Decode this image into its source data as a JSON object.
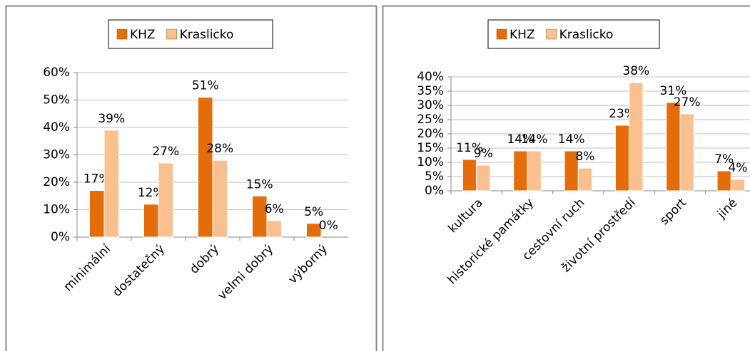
{
  "chart_data": [
    {
      "type": "bar",
      "categories": [
        "minimální",
        "dostatečný",
        "dobrý",
        "velmi dobrý",
        "výborný"
      ],
      "series": [
        {
          "name": "KHZ",
          "color": "#e46c0a",
          "values": [
            17,
            12,
            51,
            15,
            5
          ],
          "value_labels": [
            "17%",
            "12%",
            "51%",
            "15%",
            "5%"
          ]
        },
        {
          "name": "Kraslicko",
          "color": "#fac090",
          "values": [
            39,
            27,
            28,
            6,
            0
          ],
          "value_labels": [
            "39%",
            "27%",
            "28%",
            "6%",
            "0%"
          ]
        }
      ],
      "ylim": [
        0,
        60
      ],
      "yticks": [
        {
          "value": 0,
          "label": "0%"
        },
        {
          "value": 10,
          "label": "10%"
        },
        {
          "value": 20,
          "label": "20%"
        },
        {
          "value": 30,
          "label": "30%"
        },
        {
          "value": 40,
          "label": "40%"
        },
        {
          "value": 50,
          "label": "50%"
        },
        {
          "value": 60,
          "label": "60%"
        }
      ],
      "grid": true,
      "legend": "top"
    },
    {
      "type": "bar",
      "categories": [
        "kultura",
        "historické památky",
        "cestovní ruch",
        "životní prostředí",
        "sport",
        "jiné"
      ],
      "series": [
        {
          "name": "KHZ",
          "color": "#e46c0a",
          "values": [
            11,
            14,
            14,
            23,
            31,
            7
          ],
          "value_labels": [
            "11%",
            "14%",
            "14%",
            "23%",
            "31%",
            "7%"
          ]
        },
        {
          "name": "Kraslicko",
          "color": "#fac090",
          "values": [
            9,
            14,
            8,
            38,
            27,
            4
          ],
          "value_labels": [
            "9%",
            "14%",
            "8%",
            "38%",
            "27%",
            "4%"
          ]
        }
      ],
      "ylim": [
        0,
        40
      ],
      "yticks": [
        {
          "value": 0,
          "label": "0%"
        },
        {
          "value": 5,
          "label": "5%"
        },
        {
          "value": 10,
          "label": "10%"
        },
        {
          "value": 15,
          "label": "15%"
        },
        {
          "value": 20,
          "label": "20%"
        },
        {
          "value": 25,
          "label": "25%"
        },
        {
          "value": 30,
          "label": "30%"
        },
        {
          "value": 35,
          "label": "35%"
        },
        {
          "value": 40,
          "label": "40%"
        }
      ],
      "grid": true,
      "legend": "top"
    }
  ]
}
